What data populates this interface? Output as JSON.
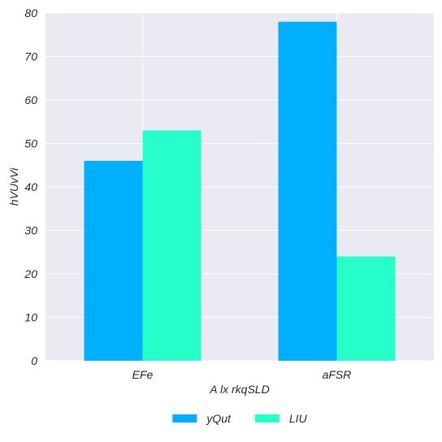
{
  "chart_data": {
    "type": "bar",
    "categories": [
      "EFe",
      "aFSR"
    ],
    "series": [
      {
        "name": "yQut",
        "values": [
          46,
          78
        ],
        "color": "#00b0ff"
      },
      {
        "name": "LIU",
        "values": [
          53,
          24
        ],
        "color": "#26ffc9"
      }
    ],
    "xlabel": "A lx rkqSLD",
    "ylabel": "hVUvVi",
    "ylim": [
      0,
      80
    ],
    "yticks": [
      0,
      10,
      20,
      30,
      40,
      50,
      60,
      70,
      80
    ],
    "grid": true,
    "legend_position": "bottom-center",
    "background_color": "#eaeaf2"
  }
}
